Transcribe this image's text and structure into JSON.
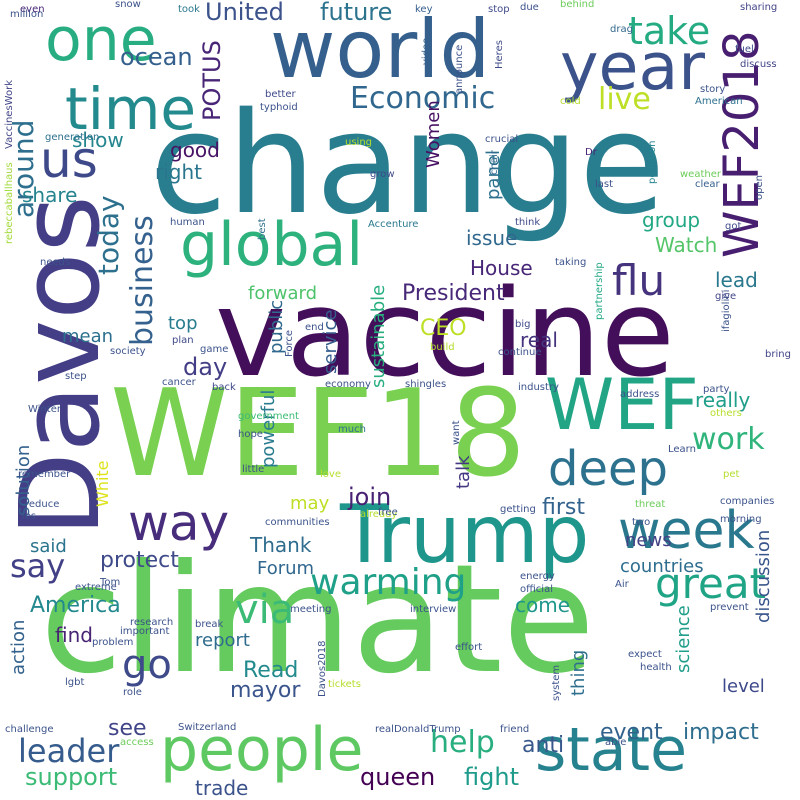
{
  "words": [
    {
      "text": "change",
      "color": "#287d8e"
    },
    {
      "text": "climate",
      "color": "#65cb5e"
    },
    {
      "text": "vaccine",
      "color": "#440f5a"
    },
    {
      "text": "WEF18",
      "color": "#7ad151"
    },
    {
      "text": "Davos",
      "color": "#433e85"
    },
    {
      "text": "world",
      "color": "#35608d"
    },
    {
      "text": "Trump",
      "color": "#1f968b"
    },
    {
      "text": "state",
      "color": "#26828e"
    },
    {
      "text": "people",
      "color": "#5ec962"
    },
    {
      "text": "year",
      "color": "#3b528b"
    },
    {
      "text": "global",
      "color": "#2db27d"
    },
    {
      "text": "WEF2018",
      "color": "#481f70"
    },
    {
      "text": "one",
      "color": "#27ad81"
    },
    {
      "text": "time",
      "color": "#238a8d"
    },
    {
      "text": "WEF",
      "color": "#21a585"
    },
    {
      "text": "deep",
      "color": "#2c728e"
    },
    {
      "text": "way",
      "color": "#472d7b"
    },
    {
      "text": "week",
      "color": "#2a788e"
    },
    {
      "text": "us",
      "color": "#3e4989"
    },
    {
      "text": "flu",
      "color": "#46337e"
    },
    {
      "text": "great",
      "color": "#20a486"
    },
    {
      "text": "warming",
      "color": "#1fa088"
    },
    {
      "text": "take",
      "color": "#25ab82"
    },
    {
      "text": "work",
      "color": "#2fb47c"
    },
    {
      "text": "via",
      "color": "#3bbb75"
    },
    {
      "text": "go",
      "color": "#3e4a89"
    },
    {
      "text": "help",
      "color": "#29af7f"
    },
    {
      "text": "leader",
      "color": "#365c8d"
    },
    {
      "text": "Economic",
      "color": "#31678e"
    },
    {
      "text": "live",
      "color": "#bddf26"
    },
    {
      "text": "today",
      "color": "#2d708e"
    },
    {
      "text": "business",
      "color": "#34618d"
    },
    {
      "text": "United",
      "color": "#3b528b"
    },
    {
      "text": "future",
      "color": "#2c738e"
    },
    {
      "text": "ocean",
      "color": "#355f8d"
    },
    {
      "text": "POTUS",
      "color": "#482576"
    },
    {
      "text": "around",
      "color": "#2e6f8e"
    },
    {
      "text": "say",
      "color": "#424086"
    },
    {
      "text": "protect",
      "color": "#3e4a89"
    },
    {
      "text": "America",
      "color": "#23898e"
    },
    {
      "text": "event",
      "color": "#33638d"
    },
    {
      "text": "impact",
      "color": "#2e6e8e"
    },
    {
      "text": "fight",
      "color": "#1e9b8a"
    },
    {
      "text": "queen",
      "color": "#440154"
    },
    {
      "text": "support",
      "color": "#3bbb75"
    },
    {
      "text": "President",
      "color": "#482878"
    },
    {
      "text": "CEO",
      "color": "#bddf26"
    },
    {
      "text": "join",
      "color": "#482173"
    },
    {
      "text": "mayor",
      "color": "#3a548c"
    },
    {
      "text": "Read",
      "color": "#238a8d"
    },
    {
      "text": "anti",
      "color": "#38588c"
    },
    {
      "text": "see",
      "color": "#414487"
    },
    {
      "text": "show",
      "color": "#24868e"
    },
    {
      "text": "good",
      "color": "#471365"
    },
    {
      "text": "right",
      "color": "#2a768e"
    },
    {
      "text": "share",
      "color": "#25848e"
    },
    {
      "text": "Watch",
      "color": "#54c568"
    },
    {
      "text": "issue",
      "color": "#31688e"
    },
    {
      "text": "House",
      "color": "#482677"
    },
    {
      "text": "group",
      "color": "#22a884"
    },
    {
      "text": "lead",
      "color": "#2a788e"
    },
    {
      "text": "forward",
      "color": "#4ec36b"
    },
    {
      "text": "top",
      "color": "#287c8e"
    },
    {
      "text": "mean",
      "color": "#2d708e"
    },
    {
      "text": "day",
      "color": "#433e85"
    },
    {
      "text": "real",
      "color": "#45337d"
    },
    {
      "text": "really",
      "color": "#1f9e89"
    },
    {
      "text": "sustainable",
      "color": "#29af7f"
    },
    {
      "text": "service",
      "color": "#355e8d"
    },
    {
      "text": "public",
      "color": "#31688e"
    },
    {
      "text": "Women",
      "color": "#471063"
    },
    {
      "text": "panel",
      "color": "#2c728e"
    },
    {
      "text": "powerful",
      "color": "#297b8e"
    },
    {
      "text": "talk",
      "color": "#443a83"
    },
    {
      "text": "first",
      "color": "#33638d"
    },
    {
      "text": "news",
      "color": "#424186"
    },
    {
      "text": "Thank",
      "color": "#2f6c8e"
    },
    {
      "text": "Forum",
      "color": "#31678e"
    },
    {
      "text": "solution",
      "color": "#34618d"
    },
    {
      "text": "action",
      "color": "#33628d"
    },
    {
      "text": "said",
      "color": "#2b748e"
    },
    {
      "text": "White",
      "color": "#dde318"
    },
    {
      "text": "countries",
      "color": "#2e6d8e"
    },
    {
      "text": "come",
      "color": "#1f968b"
    },
    {
      "text": "discussion",
      "color": "#39568c"
    },
    {
      "text": "science",
      "color": "#1f9e89"
    },
    {
      "text": "level",
      "color": "#3e4989"
    },
    {
      "text": "thing",
      "color": "#2e6f8e"
    },
    {
      "text": "report",
      "color": "#2f6c8e"
    },
    {
      "text": "find",
      "color": "#482475"
    },
    {
      "text": "trade",
      "color": "#3b528b"
    },
    {
      "text": "may",
      "color": "#bddf26"
    }
  ],
  "small_words": [
    {
      "text": "even",
      "color": "#482576"
    },
    {
      "text": "snow",
      "color": "#3b528b"
    },
    {
      "text": "took",
      "color": "#2a788e"
    },
    {
      "text": "key",
      "color": "#355f8d"
    },
    {
      "text": "stop",
      "color": "#3e4a89"
    },
    {
      "text": "due",
      "color": "#3b528b"
    },
    {
      "text": "behind",
      "color": "#6ccd5a"
    },
    {
      "text": "sharing",
      "color": "#414487"
    },
    {
      "text": "drag",
      "color": "#31688e"
    },
    {
      "text": "video",
      "color": "#34618d"
    },
    {
      "text": "announce",
      "color": "#3b528b"
    },
    {
      "text": "Heres",
      "color": "#3e4a89"
    },
    {
      "text": "fuel",
      "color": "#3e4989"
    },
    {
      "text": "discuss",
      "color": "#414487"
    },
    {
      "text": "VaccinesWork",
      "color": "#414487"
    },
    {
      "text": "better",
      "color": "#3e4989"
    },
    {
      "text": "typhoid",
      "color": "#3b528b"
    },
    {
      "text": "story",
      "color": "#3b528b"
    },
    {
      "text": "American",
      "color": "#2d708e"
    },
    {
      "text": "cold",
      "color": "#b5de2b"
    },
    {
      "text": "generation",
      "color": "#2d708e"
    },
    {
      "text": "using",
      "color": "#b5de2b"
    },
    {
      "text": "crucial",
      "color": "#3b528b"
    },
    {
      "text": "chair",
      "color": "#31688e"
    },
    {
      "text": "Dr",
      "color": "#482576"
    },
    {
      "text": "rebeccaballhaus",
      "color": "#a2da37"
    },
    {
      "text": "grow",
      "color": "#3e4a89"
    },
    {
      "text": "pollution",
      "color": "#25848e"
    },
    {
      "text": "weather",
      "color": "#6ccd5a"
    },
    {
      "text": "clear",
      "color": "#355f8d"
    },
    {
      "text": "open",
      "color": "#3b528b"
    },
    {
      "text": "last",
      "color": "#3b528b"
    },
    {
      "text": "Accenture",
      "color": "#2a788e"
    },
    {
      "text": "human",
      "color": "#3b528b"
    },
    {
      "text": "best",
      "color": "#2d708e"
    },
    {
      "text": "think",
      "color": "#3e4a89"
    },
    {
      "text": "got",
      "color": "#3e4a89"
    },
    {
      "text": "needs",
      "color": "#3b528b"
    },
    {
      "text": "taking",
      "color": "#3b528b"
    },
    {
      "text": "partnership",
      "color": "#22a884"
    },
    {
      "text": "give",
      "color": "#414487"
    },
    {
      "text": "ifagiolini",
      "color": "#3b528b"
    },
    {
      "text": "plan",
      "color": "#3e4989"
    },
    {
      "text": "society",
      "color": "#3b528b"
    },
    {
      "text": "game",
      "color": "#3b528b"
    },
    {
      "text": "end",
      "color": "#3b528b"
    },
    {
      "text": "Force",
      "color": "#3b528b"
    },
    {
      "text": "big",
      "color": "#3e4989"
    },
    {
      "text": "build",
      "color": "#b5de2b"
    },
    {
      "text": "continue",
      "color": "#3b528b"
    },
    {
      "text": "bring",
      "color": "#414487"
    },
    {
      "text": "step",
      "color": "#3b528b"
    },
    {
      "text": "cancer",
      "color": "#3b528b"
    },
    {
      "text": "back",
      "color": "#3e4989"
    },
    {
      "text": "economy",
      "color": "#3b528b"
    },
    {
      "text": "shingles",
      "color": "#3b528b"
    },
    {
      "text": "industry",
      "color": "#3b528b"
    },
    {
      "text": "address",
      "color": "#3b528b"
    },
    {
      "text": "party",
      "color": "#3b528b"
    },
    {
      "text": "Winter",
      "color": "#3b528b"
    },
    {
      "text": "government",
      "color": "#3bbb75"
    },
    {
      "text": "others",
      "color": "#b5de2b"
    },
    {
      "text": "hope",
      "color": "#3b528b"
    },
    {
      "text": "much",
      "color": "#2d708e"
    },
    {
      "text": "want",
      "color": "#3b528b"
    },
    {
      "text": "Learn",
      "color": "#3b528b"
    },
    {
      "text": "remember",
      "color": "#3b528b"
    },
    {
      "text": "little",
      "color": "#3b528b"
    },
    {
      "text": "love",
      "color": "#b5de2b"
    },
    {
      "text": "pet",
      "color": "#b5de2b"
    },
    {
      "text": "companies",
      "color": "#3b528b"
    },
    {
      "text": "reduce",
      "color": "#3b528b"
    },
    {
      "text": "Yes",
      "color": "#3b528b"
    },
    {
      "text": "already",
      "color": "#b5de2b"
    },
    {
      "text": "getting",
      "color": "#3b528b"
    },
    {
      "text": "threat",
      "color": "#6ccd5a"
    },
    {
      "text": "two",
      "color": "#3b528b"
    },
    {
      "text": "morning",
      "color": "#3b528b"
    },
    {
      "text": "communities",
      "color": "#3b528b"
    },
    {
      "text": "free",
      "color": "#3b528b"
    },
    {
      "text": "extreme",
      "color": "#3b528b"
    },
    {
      "text": "Tom",
      "color": "#3b528b"
    },
    {
      "text": "energy",
      "color": "#3b528b"
    },
    {
      "text": "official",
      "color": "#3b528b"
    },
    {
      "text": "Air",
      "color": "#3b528b"
    },
    {
      "text": "meeting",
      "color": "#3b528b"
    },
    {
      "text": "interview",
      "color": "#3b528b"
    },
    {
      "text": "research",
      "color": "#3b528b"
    },
    {
      "text": "break",
      "color": "#3b528b"
    },
    {
      "text": "important",
      "color": "#3b528b"
    },
    {
      "text": "prevent",
      "color": "#3b528b"
    },
    {
      "text": "problem",
      "color": "#3b528b"
    },
    {
      "text": "Davos2018",
      "color": "#3b528b"
    },
    {
      "text": "effort",
      "color": "#3b528b"
    },
    {
      "text": "expect",
      "color": "#3b528b"
    },
    {
      "text": "health",
      "color": "#3b528b"
    },
    {
      "text": "lgbt",
      "color": "#3b528b"
    },
    {
      "text": "tickets",
      "color": "#b5de2b"
    },
    {
      "text": "role",
      "color": "#3b528b"
    },
    {
      "text": "system",
      "color": "#3b528b"
    },
    {
      "text": "challenge",
      "color": "#3b528b"
    },
    {
      "text": "Switzerland",
      "color": "#3b528b"
    },
    {
      "text": "realDonaldTrump",
      "color": "#3b528b"
    },
    {
      "text": "friend",
      "color": "#3b528b"
    },
    {
      "text": "able",
      "color": "#3b528b"
    },
    {
      "text": "access",
      "color": "#6ccd5a"
    },
    {
      "text": "million",
      "color": "#3b528b"
    }
  ]
}
